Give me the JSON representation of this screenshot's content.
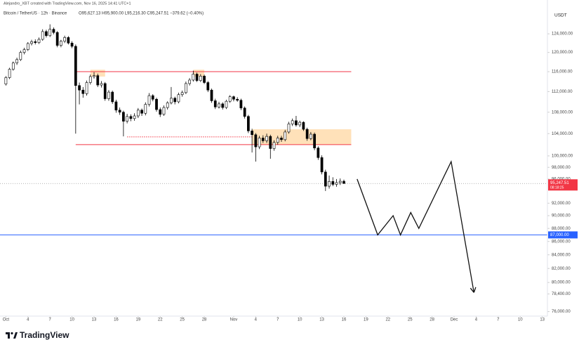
{
  "header": {
    "credit": "Alejandro_XBT created with TradingView.com, Nov 16, 2025 14:41 UTC+1",
    "symbol": "Bitcoin / TetherUS · 12h · Binance",
    "ohlc": "O95,627.13 H95,900.00 L95,216.30 C95,247.51 −379.62 (−0.40%)"
  },
  "logo": "TradingView",
  "chart_data": {
    "type": "candlestick",
    "currency": "USDT",
    "log_scale": true,
    "up_color": "#ffffff",
    "down_color": "#000000",
    "x": [
      0,
      0.5,
      1,
      1.5,
      2,
      2.5,
      3,
      3.5,
      4,
      4.5,
      5,
      5.5,
      6,
      6.5,
      7,
      7.5,
      8,
      8.5,
      9,
      9.5,
      10,
      10.5,
      11,
      11.5,
      12,
      12.5,
      13,
      13.5,
      14,
      14.5,
      15,
      15.5,
      16,
      16.5,
      17,
      17.5,
      18,
      18.5,
      19,
      19.5,
      20,
      20.5,
      21,
      21.5,
      22,
      22.5,
      23,
      23.5,
      24,
      24.5,
      25,
      25.5,
      26,
      26.5,
      27,
      27.5,
      28,
      28.5,
      29,
      29.5,
      30,
      30.5,
      31,
      31.5,
      32,
      32.5,
      33,
      33.5,
      34,
      34.5,
      35,
      35.5,
      36,
      36.5,
      37,
      37.5,
      38,
      38.5,
      39,
      39.5,
      40,
      40.5,
      41,
      41.5,
      42,
      42.5,
      43,
      43.5,
      44,
      44.5,
      45,
      45.5,
      46
    ],
    "candles": [
      [
        113500,
        115100,
        113200,
        114800
      ],
      [
        114800,
        116800,
        114500,
        116500
      ],
      [
        116500,
        118100,
        116200,
        117800
      ],
      [
        117800,
        118900,
        117400,
        118500
      ],
      [
        118500,
        120400,
        118200,
        120000
      ],
      [
        120000,
        121000,
        119600,
        120600
      ],
      [
        120600,
        122200,
        120300,
        121900
      ],
      [
        121900,
        122700,
        121500,
        122300
      ],
      [
        122300,
        122800,
        121700,
        122100
      ],
      [
        122100,
        123200,
        121800,
        122800
      ],
      [
        122800,
        125000,
        122500,
        124500
      ],
      [
        124500,
        124900,
        123200,
        123600
      ],
      [
        123600,
        126100,
        123300,
        125000
      ],
      [
        125000,
        125400,
        123900,
        124300
      ],
      [
        124300,
        124600,
        121100,
        121500
      ],
      [
        121500,
        122700,
        121100,
        122400
      ],
      [
        122400,
        123600,
        122000,
        123200
      ],
      [
        123200,
        123500,
        121700,
        122000
      ],
      [
        122000,
        122400,
        120900,
        121300
      ],
      [
        121300,
        121700,
        104000,
        113200
      ],
      [
        113200,
        113800,
        109500,
        112300
      ],
      [
        112300,
        112900,
        110800,
        111600
      ],
      [
        111600,
        114200,
        111200,
        113800
      ],
      [
        113800,
        115400,
        113400,
        115000
      ],
      [
        115000,
        115900,
        114600,
        115200
      ],
      [
        115200,
        115600,
        112900,
        113300
      ],
      [
        113300,
        114100,
        112800,
        113600
      ],
      [
        113600,
        113900,
        110200,
        110600
      ],
      [
        110600,
        112300,
        110200,
        111900
      ],
      [
        111900,
        112200,
        109600,
        110000
      ],
      [
        110000,
        110400,
        107900,
        108400
      ],
      [
        108400,
        108900,
        107500,
        108000
      ],
      [
        108000,
        108300,
        103500,
        106300
      ],
      [
        106300,
        107700,
        105900,
        107200
      ],
      [
        107200,
        107600,
        106300,
        106800
      ],
      [
        106800,
        107800,
        106400,
        107300
      ],
      [
        107300,
        108800,
        106900,
        108400
      ],
      [
        108400,
        108700,
        107300,
        107800
      ],
      [
        107800,
        109900,
        107400,
        109500
      ],
      [
        109500,
        111700,
        109100,
        111200
      ],
      [
        111200,
        111500,
        110100,
        110500
      ],
      [
        110500,
        110800,
        108100,
        108500
      ],
      [
        108500,
        108900,
        107100,
        107600
      ],
      [
        107600,
        109300,
        107300,
        108900
      ],
      [
        108900,
        110100,
        108500,
        109800
      ],
      [
        109800,
        112900,
        109500,
        110700
      ],
      [
        110700,
        111000,
        109500,
        110000
      ],
      [
        110000,
        111800,
        109700,
        111400
      ],
      [
        111400,
        112200,
        111000,
        111800
      ],
      [
        111800,
        114000,
        111500,
        113600
      ],
      [
        113600,
        114700,
        113200,
        114300
      ],
      [
        114300,
        116200,
        114000,
        115500
      ],
      [
        115500,
        115800,
        113900,
        114200
      ],
      [
        114200,
        115500,
        113900,
        115100
      ],
      [
        115100,
        115400,
        113500,
        113800
      ],
      [
        113800,
        114100,
        111900,
        112300
      ],
      [
        112300,
        112600,
        109800,
        110200
      ],
      [
        110200,
        110600,
        108600,
        109000
      ],
      [
        109000,
        110000,
        108700,
        109600
      ],
      [
        109600,
        109900,
        108500,
        108900
      ],
      [
        108900,
        110400,
        108600,
        110100
      ],
      [
        110100,
        111300,
        109800,
        111000
      ],
      [
        111000,
        111200,
        110100,
        110500
      ],
      [
        110500,
        110900,
        110000,
        110300
      ],
      [
        110300,
        110600,
        108400,
        108800
      ],
      [
        108800,
        109100,
        106800,
        107200
      ],
      [
        107200,
        107500,
        104100,
        104500
      ],
      [
        104500,
        104900,
        100600,
        103800
      ],
      [
        103800,
        104100,
        99000,
        101600
      ],
      [
        101600,
        103600,
        101200,
        103200
      ],
      [
        103200,
        103700,
        102300,
        102700
      ],
      [
        102700,
        104000,
        102300,
        103500
      ],
      [
        103500,
        103800,
        99500,
        101300
      ],
      [
        101300,
        102800,
        100900,
        102400
      ],
      [
        102400,
        103600,
        102000,
        103200
      ],
      [
        103200,
        103600,
        102500,
        102900
      ],
      [
        102900,
        104700,
        102600,
        104300
      ],
      [
        104300,
        106200,
        104000,
        105800
      ],
      [
        105800,
        106800,
        105400,
        106400
      ],
      [
        106400,
        107300,
        105300,
        105600
      ],
      [
        105600,
        106400,
        105200,
        106100
      ],
      [
        106100,
        106300,
        104500,
        104800
      ],
      [
        104800,
        105100,
        102700,
        103100
      ],
      [
        103100,
        104300,
        102800,
        103900
      ],
      [
        103900,
        104200,
        101000,
        101400
      ],
      [
        101400,
        101700,
        99300,
        99700
      ],
      [
        99700,
        100100,
        96800,
        97200
      ],
      [
        97200,
        97600,
        94000,
        94800
      ],
      [
        94800,
        96600,
        94400,
        95600
      ],
      [
        95600,
        96300,
        94800,
        95100
      ],
      [
        95100,
        96000,
        94700,
        95400
      ],
      [
        95400,
        96100,
        95000,
        95627.13
      ],
      [
        95627.13,
        95900,
        95216.3,
        95247.51
      ]
    ],
    "xlim": [
      -0.8,
      73.7
    ],
    "xticks": [
      {
        "value": 0,
        "label": "Oct"
      },
      {
        "value": 3,
        "label": "4"
      },
      {
        "value": 6,
        "label": "7"
      },
      {
        "value": 9,
        "label": "10"
      },
      {
        "value": 12,
        "label": "13"
      },
      {
        "value": 15,
        "label": "16"
      },
      {
        "value": 18,
        "label": "19"
      },
      {
        "value": 21,
        "label": "22"
      },
      {
        "value": 24,
        "label": "25"
      },
      {
        "value": 27,
        "label": "28"
      },
      {
        "value": 31,
        "label": "Nov"
      },
      {
        "value": 34,
        "label": "4"
      },
      {
        "value": 37,
        "label": "7"
      },
      {
        "value": 40,
        "label": "10"
      },
      {
        "value": 43,
        "label": "13"
      },
      {
        "value": 46,
        "label": "16"
      },
      {
        "value": 49,
        "label": "19"
      },
      {
        "value": 52,
        "label": "22"
      },
      {
        "value": 55,
        "label": "25"
      },
      {
        "value": 58,
        "label": "28"
      },
      {
        "value": 61,
        "label": "Dec"
      },
      {
        "value": 64,
        "label": "4"
      },
      {
        "value": 67,
        "label": "7"
      },
      {
        "value": 70,
        "label": "10"
      },
      {
        "value": 73,
        "label": "13"
      }
    ],
    "ylim": [
      75400,
      130000
    ],
    "yticks": [
      {
        "value": 124000,
        "label": "124,000.00"
      },
      {
        "value": 120000,
        "label": "120,000.00"
      },
      {
        "value": 116000,
        "label": "116,000.00"
      },
      {
        "value": 112000,
        "label": "112,000.00"
      },
      {
        "value": 108000,
        "label": "108,000.00"
      },
      {
        "value": 104000,
        "label": "104,000.00"
      },
      {
        "value": 100000,
        "label": "100,000.00"
      },
      {
        "value": 98000,
        "label": "98,000.00"
      },
      {
        "value": 96000,
        "label": "96,000.00"
      },
      {
        "value": 92000,
        "label": "92,000.00"
      },
      {
        "value": 90000,
        "label": "90,000.00"
      },
      {
        "value": 88000,
        "label": "88,000.00"
      },
      {
        "value": 86000,
        "label": "86,000.00"
      },
      {
        "value": 84000,
        "label": "84,000.00"
      },
      {
        "value": 82000,
        "label": "82,000.00"
      },
      {
        "value": 80000,
        "label": "80,000.00"
      },
      {
        "value": 78400,
        "label": "78,400.00"
      },
      {
        "value": 76000,
        "label": "76,000.00"
      }
    ],
    "last_price": {
      "value": 95247.51,
      "label": "95,247.51",
      "countdown": "08:18:25",
      "color": "#f23645"
    },
    "level": {
      "value": 87000,
      "label": "87,000.00",
      "color": "#2962ff"
    },
    "lines": [
      {
        "from": 9.5,
        "to": 47,
        "price": 116000,
        "color": "#f23645",
        "dashed": false
      },
      {
        "from": 9.5,
        "to": 47,
        "price": 102000,
        "color": "#f23645",
        "dashed": false
      },
      {
        "from": 16.5,
        "to": 33.5,
        "price": 103400,
        "color": "#f23645",
        "dashed": true
      }
    ],
    "zones": [
      {
        "from": 11.5,
        "to": 13.5,
        "low": 115000,
        "high": 116400,
        "color": "#ffd9a8"
      },
      {
        "from": 25.5,
        "to": 27,
        "low": 115000,
        "high": 116400,
        "color": "#ffd9a8"
      },
      {
        "from": 33.5,
        "to": 47,
        "low": 102000,
        "high": 104800,
        "color": "#ffd9a8"
      }
    ],
    "projection": {
      "x": [
        47.8,
        50.6,
        52.7,
        53.7,
        55.1,
        56.2,
        60.6,
        63.7
      ],
      "y": [
        96000,
        87000,
        90000,
        87000,
        90500,
        88000,
        99000,
        78600
      ],
      "color": "#111111"
    }
  }
}
